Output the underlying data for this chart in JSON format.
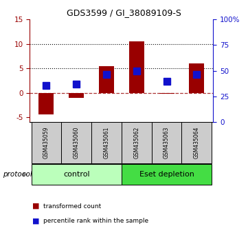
{
  "title": "GDS3599 / GI_38089109-S",
  "samples": [
    "GSM435059",
    "GSM435060",
    "GSM435061",
    "GSM435062",
    "GSM435063",
    "GSM435064"
  ],
  "red_values": [
    -4.5,
    -1.0,
    5.5,
    10.5,
    -0.2,
    6.0
  ],
  "blue_values": [
    1.5,
    1.8,
    3.7,
    4.5,
    2.3,
    3.8
  ],
  "ylim_left": [
    -6,
    15
  ],
  "ylim_right": [
    0,
    100
  ],
  "yticks_left": [
    -5,
    0,
    5,
    10,
    15
  ],
  "ytick_labels_left": [
    "-5",
    "0",
    "5",
    "10",
    "15"
  ],
  "yticks_right": [
    0,
    25,
    50,
    75,
    100
  ],
  "ytick_labels_right": [
    "0",
    "25",
    "50",
    "75",
    "100%"
  ],
  "dotted_lines": [
    5,
    10
  ],
  "red_color": "#990000",
  "blue_color": "#1111cc",
  "group_control_color": "#bbffbb",
  "group_eset_color": "#44dd44",
  "group_border_color": "#000000",
  "gray_box_color": "#cccccc",
  "protocol_label": "protocol",
  "legend_red": "transformed count",
  "legend_blue": "percentile rank within the sample",
  "bar_width": 0.5,
  "blue_marker_size": 7
}
